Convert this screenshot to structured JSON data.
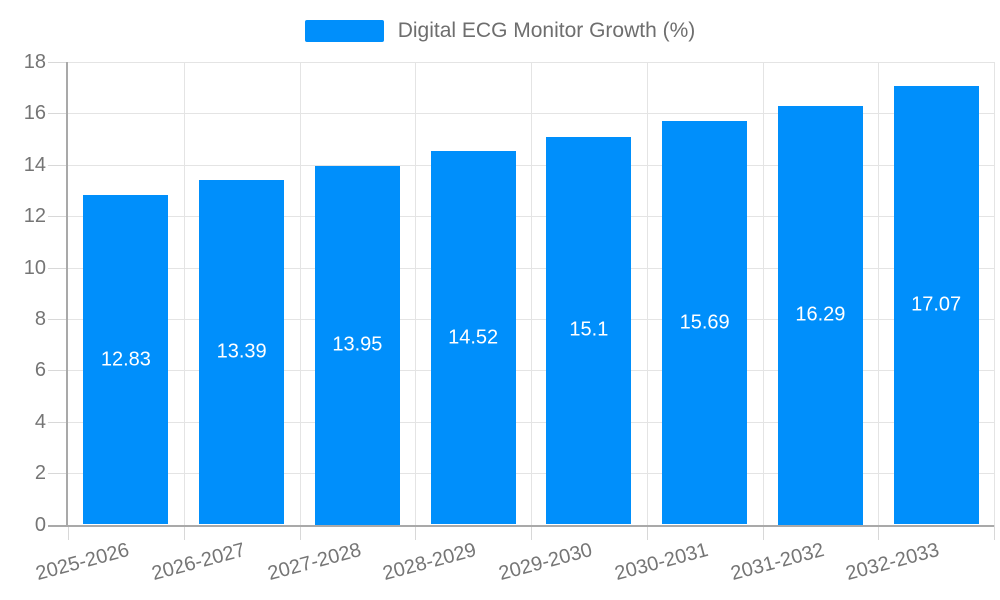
{
  "legend": {
    "label": "Digital ECG Monitor Growth (%)"
  },
  "colors": {
    "bar": "#008FFB",
    "gridline": "#e4e4e4",
    "tick": "#d8d8d8",
    "axis_line": "#a9a9a9",
    "axis_label": "#757575",
    "legend_text": "#6e6e6e",
    "value_label": "#ffffff",
    "background": "#ffffff"
  },
  "chart_data": {
    "type": "bar",
    "title": "Digital ECG Monitor Growth (%)",
    "categories": [
      "2025-2026",
      "2026-2027",
      "2027-2028",
      "2028-2029",
      "2029-2030",
      "2030-2031",
      "2031-2032",
      "2032-2033"
    ],
    "values": [
      12.83,
      13.39,
      13.95,
      14.52,
      15.1,
      15.69,
      16.29,
      17.07
    ],
    "value_labels": [
      "12.83",
      "13.39",
      "13.95",
      "14.52",
      "15.1",
      "15.69",
      "16.29",
      "17.07"
    ],
    "series": [
      {
        "name": "Digital ECG Monitor Growth (%)",
        "values": [
          12.83,
          13.39,
          13.95,
          14.52,
          15.1,
          15.69,
          16.29,
          17.07
        ]
      }
    ],
    "xlabel": "",
    "ylabel": "",
    "ylim": [
      0,
      18
    ],
    "yticks": [
      0,
      2,
      4,
      6,
      8,
      10,
      12,
      14,
      16,
      18
    ],
    "grid": true,
    "legend_position": "top-center",
    "x_label_rotation_deg": -15
  }
}
